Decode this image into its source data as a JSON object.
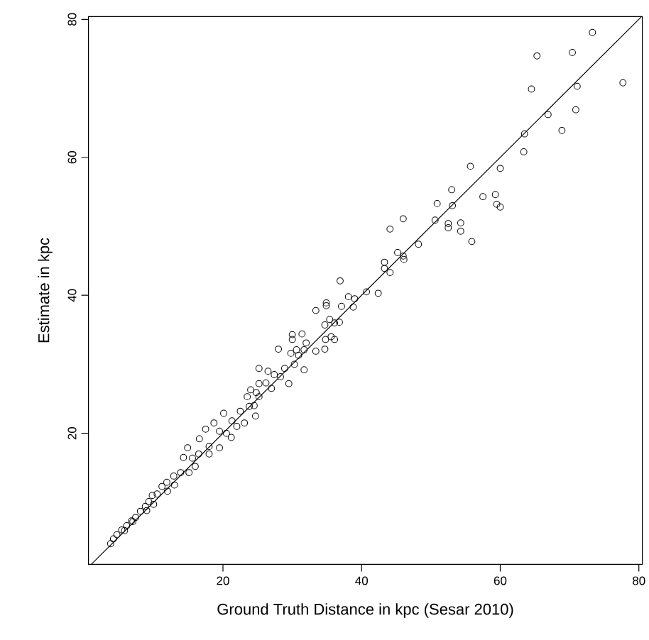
{
  "chart_data": {
    "type": "scatter",
    "xlabel": "Ground Truth Distance in kpc (Sesar 2010)",
    "ylabel": "Estimate in kpc",
    "xlim": [
      0.6,
      80.5
    ],
    "ylim": [
      1.0,
      80.4
    ],
    "xticks": [
      20,
      40,
      60,
      80
    ],
    "yticks": [
      20,
      40,
      60,
      80
    ],
    "marker": "circle",
    "series": [
      {
        "color": "#000000",
        "x": [
          73.3,
          65.3,
          70.4,
          64.5,
          71.1,
          77.7,
          66.9,
          70.9,
          68.9,
          63.5,
          63.4,
          55.7,
          60.0,
          50.9,
          53.0,
          53.1,
          57.5,
          59.3,
          59.5,
          60.0,
          46.0,
          50.6,
          52.5,
          52.5,
          54.3,
          54.3,
          55.9,
          44.1,
          48.2,
          45.2,
          46.0,
          46.1,
          43.3,
          43.3,
          44.1,
          36.9,
          42.4,
          40.7,
          38.8,
          38.1,
          39.0,
          34.9,
          34.9,
          33.4,
          37.1,
          35.4,
          34.7,
          36.8,
          36.1,
          35.6,
          36.1,
          34.8,
          34.7,
          33.4,
          30.0,
          31.4,
          30.0,
          32.0,
          31.7,
          30.6,
          29.8,
          28.0,
          31.7,
          30.9,
          30.3,
          28.9,
          29.5,
          28.3,
          25.2,
          26.5,
          27.4,
          26.2,
          25.2,
          24.8,
          24.0,
          23.5,
          25.2,
          23.8,
          22.5,
          24.7,
          23.1,
          21.3,
          20.1,
          18.7,
          17.5,
          19.5,
          21.2,
          19.5,
          18.0,
          16.6,
          16.5,
          14.9,
          15.6,
          14.3,
          15.1,
          13.9,
          12.9,
          11.9,
          11.2,
          10.5,
          9.8,
          9.3,
          8.8,
          8.1,
          7.4,
          6.8,
          6.1,
          5.4,
          4.7,
          4.2,
          3.8,
          27.0,
          22.0,
          18.0,
          13.0,
          10.0,
          7.0,
          24.5,
          20.5,
          16.0,
          12.0,
          9.0,
          5.8
        ],
        "values": [
          78.1,
          74.7,
          75.2,
          69.9,
          70.3,
          70.8,
          66.2,
          66.9,
          63.9,
          63.4,
          60.8,
          58.7,
          58.4,
          53.3,
          55.3,
          53.0,
          54.3,
          54.6,
          53.2,
          52.8,
          51.1,
          50.9,
          50.4,
          49.8,
          50.5,
          49.3,
          47.8,
          49.6,
          47.4,
          46.2,
          45.7,
          45.2,
          44.8,
          43.9,
          43.3,
          42.1,
          40.3,
          40.5,
          38.3,
          39.8,
          39.5,
          38.9,
          38.5,
          37.8,
          38.4,
          36.5,
          35.7,
          36.1,
          36.0,
          34.0,
          33.6,
          33.6,
          32.2,
          31.9,
          34.3,
          34.4,
          33.6,
          33.1,
          32.1,
          32.1,
          31.6,
          32.2,
          29.2,
          31.3,
          30.0,
          29.4,
          27.2,
          28.2,
          29.4,
          29.0,
          28.5,
          27.3,
          27.2,
          25.9,
          26.3,
          25.3,
          25.3,
          23.9,
          23.2,
          22.5,
          21.5,
          21.8,
          22.9,
          21.5,
          20.6,
          20.3,
          19.4,
          17.9,
          18.1,
          19.2,
          17.0,
          17.9,
          16.4,
          16.5,
          14.3,
          14.3,
          13.8,
          12.9,
          12.3,
          11.2,
          11.0,
          10.1,
          9.4,
          8.7,
          7.8,
          7.3,
          6.6,
          6.0,
          5.3,
          4.7,
          4.0,
          26.5,
          21.0,
          17.0,
          12.5,
          9.7,
          7.2,
          24.0,
          20.0,
          15.2,
          11.6,
          8.8,
          5.9
        ]
      },
      {
        "type": "line",
        "color": "#000000",
        "marker": "none",
        "x": [
          1.0,
          80.4
        ],
        "values": [
          1.0,
          80.4
        ]
      }
    ]
  }
}
